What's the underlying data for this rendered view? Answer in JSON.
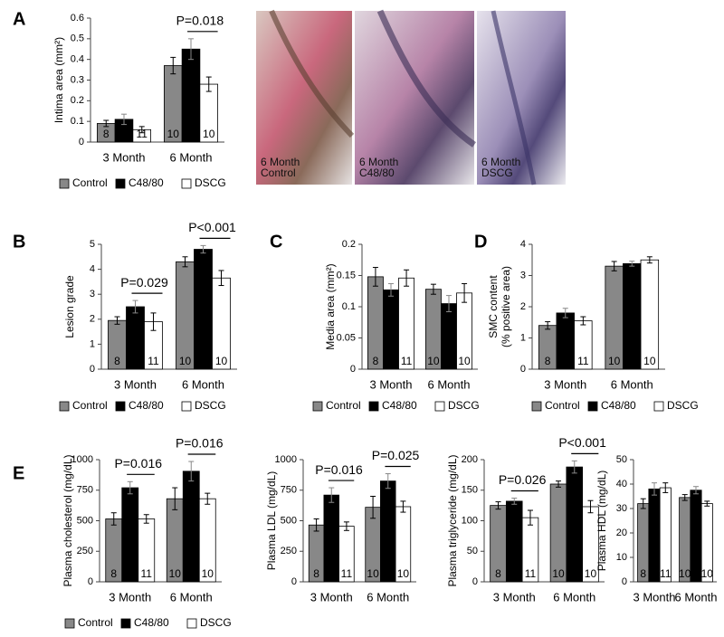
{
  "panels": [
    "A",
    "B",
    "C",
    "D",
    "E"
  ],
  "images": [
    {
      "caption": [
        "6 Month",
        "Control"
      ]
    },
    {
      "caption": [
        "6 Month",
        "C48/80"
      ]
    },
    {
      "caption": [
        "6 Month",
        "DSCG"
      ]
    }
  ],
  "chart_data": [
    {
      "type": "bar",
      "ylabel": [
        "Intima area (mm²)"
      ],
      "categories": [
        "3 Month",
        "6 Month"
      ],
      "ylim": [
        0,
        0.6
      ],
      "yticks": [
        0,
        0.1,
        0.2,
        0.3,
        0.4,
        0.5,
        0.6
      ],
      "legend": true,
      "annotations": [
        null,
        "P=0.018"
      ],
      "series": [
        {
          "name": "Control",
          "color": "#888888",
          "values": [
            0.09,
            0.37
          ],
          "errors": [
            0.015,
            0.04
          ],
          "n": [
            8,
            10
          ]
        },
        {
          "name": "C48/80",
          "color": "#000000",
          "values": [
            0.11,
            0.45
          ],
          "errors": [
            0.025,
            0.05
          ],
          "n": [
            11,
            10
          ]
        },
        {
          "name": "DSCG",
          "color": "#ffffff",
          "values": [
            0.06,
            0.28
          ],
          "errors": [
            0.015,
            0.035
          ],
          "n": [
            11,
            10
          ]
        }
      ]
    },
    {
      "type": "bar",
      "ylabel": [
        "Lesion grade"
      ],
      "categories": [
        "3 Month",
        "6 Month"
      ],
      "ylim": [
        0,
        5
      ],
      "yticks": [
        0,
        1,
        2,
        3,
        4,
        5
      ],
      "legend": true,
      "annotations": [
        "P=0.029",
        "P<0.001"
      ],
      "series": [
        {
          "name": "Control",
          "color": "#888888",
          "values": [
            1.95,
            4.3
          ],
          "errors": [
            0.15,
            0.2
          ],
          "n": [
            8,
            10
          ]
        },
        {
          "name": "C48/80",
          "color": "#000000",
          "values": [
            2.5,
            4.8
          ],
          "errors": [
            0.25,
            0.15
          ],
          "n": [
            11,
            10
          ]
        },
        {
          "name": "DSCG",
          "color": "#ffffff",
          "values": [
            1.9,
            3.65
          ],
          "errors": [
            0.35,
            0.3
          ],
          "n": [
            11,
            10
          ]
        }
      ]
    },
    {
      "type": "bar",
      "ylabel": [
        "Media area (mm²)"
      ],
      "categories": [
        "3 Month",
        "6 Month"
      ],
      "ylim": [
        0,
        0.2
      ],
      "yticks": [
        0,
        0.05,
        0.1,
        0.15,
        0.2
      ],
      "legend": true,
      "annotations": [
        null,
        null
      ],
      "series": [
        {
          "name": "Control",
          "color": "#888888",
          "values": [
            0.148,
            0.128
          ],
          "errors": [
            0.015,
            0.008
          ],
          "n": [
            8,
            10
          ]
        },
        {
          "name": "C48/80",
          "color": "#000000",
          "values": [
            0.127,
            0.105
          ],
          "errors": [
            0.01,
            0.013
          ],
          "n": [
            11,
            10
          ]
        },
        {
          "name": "DSCG",
          "color": "#ffffff",
          "values": [
            0.146,
            0.122
          ],
          "errors": [
            0.013,
            0.015
          ],
          "n": [
            11,
            10
          ]
        }
      ]
    },
    {
      "type": "bar",
      "ylabel": [
        "SMC content",
        "(% positive area)"
      ],
      "categories": [
        "3 Month",
        "6 Month"
      ],
      "ylim": [
        0,
        4
      ],
      "yticks": [
        0,
        1,
        2,
        3,
        4
      ],
      "legend": true,
      "annotations": [
        null,
        null
      ],
      "series": [
        {
          "name": "Control",
          "color": "#888888",
          "values": [
            1.4,
            3.3
          ],
          "errors": [
            0.12,
            0.15
          ],
          "n": [
            8,
            10
          ]
        },
        {
          "name": "C48/80",
          "color": "#000000",
          "values": [
            1.8,
            3.38
          ],
          "errors": [
            0.15,
            0.08
          ],
          "n": [
            11,
            10
          ]
        },
        {
          "name": "DSCG",
          "color": "#ffffff",
          "values": [
            1.55,
            3.5
          ],
          "errors": [
            0.13,
            0.1
          ],
          "n": [
            11,
            10
          ]
        }
      ]
    },
    {
      "type": "bar",
      "ylabel": [
        "Plasma cholesterol (mg/dL)"
      ],
      "categories": [
        "3 Month",
        "6 Month"
      ],
      "ylim": [
        0,
        1000
      ],
      "yticks": [
        0,
        250,
        500,
        750,
        1000
      ],
      "legend": true,
      "annotations": [
        "P=0.016",
        "P=0.016"
      ],
      "series": [
        {
          "name": "Control",
          "color": "#888888",
          "values": [
            515,
            680
          ],
          "errors": [
            50,
            90
          ],
          "n": [
            8,
            10
          ]
        },
        {
          "name": "C48/80",
          "color": "#000000",
          "values": [
            770,
            905
          ],
          "errors": [
            50,
            80
          ],
          "n": [
            11,
            10
          ]
        },
        {
          "name": "DSCG",
          "color": "#ffffff",
          "values": [
            515,
            680
          ],
          "errors": [
            35,
            45
          ],
          "n": [
            11,
            10
          ]
        }
      ]
    },
    {
      "type": "bar",
      "ylabel": [
        "Plasma LDL (mg/dL)"
      ],
      "categories": [
        "3 Month",
        "6 Month"
      ],
      "ylim": [
        0,
        1000
      ],
      "yticks": [
        0,
        250,
        500,
        750,
        1000
      ],
      "legend": false,
      "annotations": [
        "P=0.016",
        "P=0.025"
      ],
      "series": [
        {
          "name": "Control",
          "color": "#888888",
          "values": [
            465,
            610
          ],
          "errors": [
            50,
            90
          ],
          "n": [
            8,
            10
          ]
        },
        {
          "name": "C48/80",
          "color": "#000000",
          "values": [
            710,
            825
          ],
          "errors": [
            60,
            60
          ],
          "n": [
            11,
            10
          ]
        },
        {
          "name": "DSCG",
          "color": "#ffffff",
          "values": [
            455,
            615
          ],
          "errors": [
            35,
            45
          ],
          "n": [
            11,
            10
          ]
        }
      ]
    },
    {
      "type": "bar",
      "ylabel": [
        "Plasma triglyceride (mg/dL)"
      ],
      "categories": [
        "3 Month",
        "6 Month"
      ],
      "ylim": [
        0,
        200
      ],
      "yticks": [
        0,
        50,
        100,
        150,
        200
      ],
      "legend": false,
      "annotations": [
        "P=0.026",
        "P<0.001"
      ],
      "series": [
        {
          "name": "Control",
          "color": "#888888",
          "values": [
            125,
            160
          ],
          "errors": [
            6,
            5
          ],
          "n": [
            8,
            10
          ]
        },
        {
          "name": "C48/80",
          "color": "#000000",
          "values": [
            132,
            188
          ],
          "errors": [
            5,
            10
          ],
          "n": [
            11,
            10
          ]
        },
        {
          "name": "DSCG",
          "color": "#ffffff",
          "values": [
            105,
            123
          ],
          "errors": [
            12,
            10
          ],
          "n": [
            11,
            10
          ]
        }
      ]
    },
    {
      "type": "bar",
      "ylabel": [
        "Plasma HDL (mg/dL)"
      ],
      "categories": [
        "3 Month",
        "6 Month"
      ],
      "ylim": [
        0,
        50
      ],
      "yticks": [
        0,
        10,
        20,
        30,
        40,
        50
      ],
      "legend": false,
      "annotations": [
        null,
        null
      ],
      "series": [
        {
          "name": "Control",
          "color": "#888888",
          "values": [
            32,
            34.5
          ],
          "errors": [
            2,
            1.2
          ],
          "n": [
            8,
            10
          ]
        },
        {
          "name": "C48/80",
          "color": "#000000",
          "values": [
            38,
            37.5
          ],
          "errors": [
            2.5,
            1.5
          ],
          "n": [
            11,
            10
          ]
        },
        {
          "name": "DSCG",
          "color": "#ffffff",
          "values": [
            38.5,
            32
          ],
          "errors": [
            2,
            1
          ],
          "n": [
            11,
            10
          ]
        }
      ]
    }
  ]
}
